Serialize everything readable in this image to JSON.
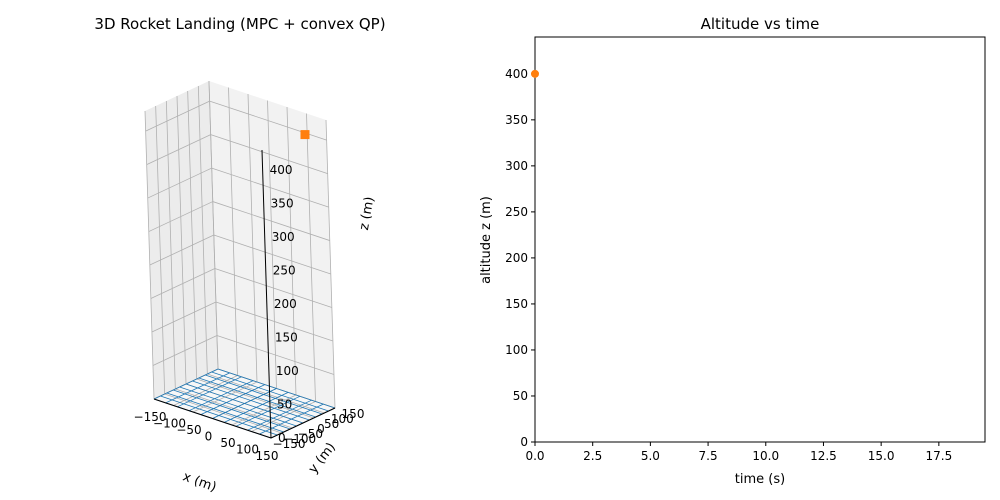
{
  "chart_data": [
    {
      "type": "scatter3d",
      "title": "3D Rocket Landing (MPC + convex QP)",
      "xlabel": "x (m)",
      "ylabel": "y (m)",
      "zlabel": "z (m)",
      "xlim": [
        -150,
        150
      ],
      "ylim": [
        -150,
        150
      ],
      "zlim": [
        0,
        430
      ],
      "xticks": [
        -150,
        -100,
        -50,
        0,
        50,
        100,
        150
      ],
      "yticks": [
        -150,
        -100,
        -50,
        0,
        50,
        100,
        150
      ],
      "zticks": [
        0,
        50,
        100,
        150,
        200,
        250,
        300,
        350,
        400
      ],
      "xtick_labels": [
        "−150",
        "−100",
        "−50",
        "0",
        "50",
        "100",
        "150"
      ],
      "ytick_labels": [
        "−150",
        "−100",
        "−50",
        "0",
        "50",
        "100",
        "150"
      ],
      "ztick_labels": [
        "0",
        "50",
        "100",
        "150",
        "200",
        "250",
        "300",
        "350",
        "400"
      ],
      "grid": true,
      "ground_pad": {
        "x_range": [
          -150,
          150
        ],
        "y_range": [
          -150,
          150
        ],
        "z": 0,
        "color": "#1f77b4"
      },
      "series": [
        {
          "marker": "square",
          "color": "#ff7f0e",
          "points": [
            {
              "x": 100,
              "y": 140,
              "z": 400
            }
          ]
        }
      ]
    },
    {
      "type": "scatter",
      "title": "Altitude vs time",
      "xlabel": "time (s)",
      "ylabel": "altitude z (m)",
      "xlim": [
        0,
        19.5
      ],
      "ylim": [
        0,
        440
      ],
      "xticks": [
        0,
        2.5,
        5,
        7.5,
        10,
        12.5,
        15,
        17.5
      ],
      "xtick_labels": [
        "0.0",
        "2.5",
        "5.0",
        "7.5",
        "10.0",
        "12.5",
        "15.0",
        "17.5"
      ],
      "yticks": [
        0,
        50,
        100,
        150,
        200,
        250,
        300,
        350,
        400
      ],
      "ytick_labels": [
        "0",
        "50",
        "100",
        "150",
        "200",
        "250",
        "300",
        "350",
        "400"
      ],
      "grid": false,
      "series": [
        {
          "marker": "circle",
          "color": "#ff7f0e",
          "x": [
            0.0
          ],
          "y": [
            400
          ]
        }
      ]
    }
  ]
}
